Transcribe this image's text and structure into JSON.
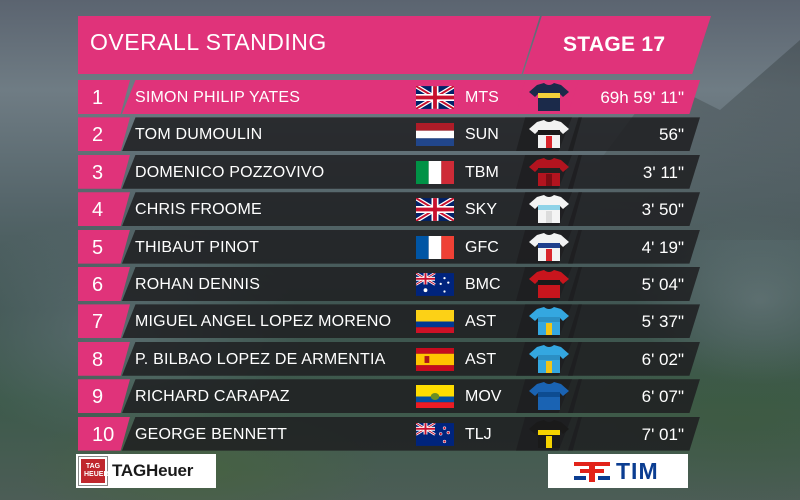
{
  "header": {
    "title": "OVERALL STANDING",
    "stage": "STAGE 17"
  },
  "riders": [
    {
      "rank": "1",
      "name": "SIMON PHILIP YATES",
      "flag": "gb-flag-icon",
      "team": "MTS",
      "jersey": "mitchelton-scott-jersey-icon",
      "time": "69h 59' 11\""
    },
    {
      "rank": "2",
      "name": "TOM DUMOULIN",
      "flag": "nl-flag-icon",
      "team": "SUN",
      "jersey": "sunweb-jersey-icon",
      "time": "56\""
    },
    {
      "rank": "3",
      "name": "DOMENICO POZZOVIVO",
      "flag": "it-flag-icon",
      "team": "TBM",
      "jersey": "bahrain-merida-jersey-icon",
      "time": "3' 11\""
    },
    {
      "rank": "4",
      "name": "CHRIS FROOME",
      "flag": "gb-flag-icon",
      "team": "SKY",
      "jersey": "sky-jersey-icon",
      "time": "3' 50\""
    },
    {
      "rank": "5",
      "name": "THIBAUT PINOT",
      "flag": "fr-flag-icon",
      "team": "GFC",
      "jersey": "groupama-fdj-jersey-icon",
      "time": "4' 19\""
    },
    {
      "rank": "6",
      "name": "ROHAN DENNIS",
      "flag": "au-flag-icon",
      "team": "BMC",
      "jersey": "bmc-jersey-icon",
      "time": "5' 04\""
    },
    {
      "rank": "7",
      "name": "MIGUEL ANGEL LOPEZ MORENO",
      "flag": "co-flag-icon",
      "team": "AST",
      "jersey": "astana-jersey-icon",
      "time": "5' 37\""
    },
    {
      "rank": "8",
      "name": "P. BILBAO LOPEZ DE ARMENTIA",
      "flag": "es-flag-icon",
      "team": "AST",
      "jersey": "astana-jersey-icon",
      "time": "6' 02\""
    },
    {
      "rank": "9",
      "name": "RICHARD CARAPAZ",
      "flag": "ec-flag-icon",
      "team": "MOV",
      "jersey": "movistar-jersey-icon",
      "time": "6' 07\""
    },
    {
      "rank": "10",
      "name": "GEORGE BENNETT",
      "flag": "nz-flag-icon",
      "team": "TLJ",
      "jersey": "lotto-jumbo-jersey-icon",
      "time": "7' 01\""
    }
  ],
  "sponsors": {
    "left": "TAGHeuer",
    "left_badge": "TAG HEUER",
    "right": "TIM"
  },
  "colors": {
    "accent": "#e0337a",
    "row_bg": "#1e1e20",
    "text": "#ffffff"
  }
}
